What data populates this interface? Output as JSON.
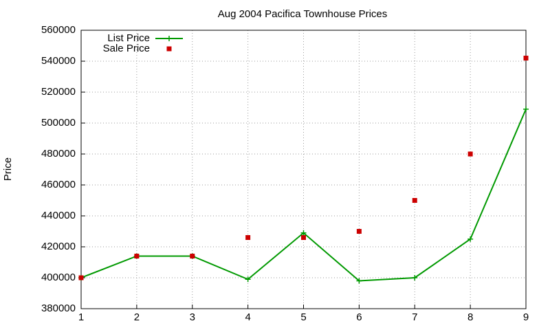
{
  "chart_data": {
    "type": "line",
    "title": "Aug 2004 Pacifica Townhouse Prices",
    "y_label": "Price",
    "x": [
      1,
      2,
      3,
      4,
      5,
      6,
      7,
      8,
      9
    ],
    "xlim": [
      1,
      9
    ],
    "xticks": [
      1,
      2,
      3,
      4,
      5,
      6,
      7,
      8,
      9
    ],
    "ylim": [
      380000,
      560000
    ],
    "yticks": [
      380000,
      400000,
      420000,
      440000,
      460000,
      480000,
      500000,
      520000,
      540000,
      560000
    ],
    "grid": true,
    "legend": "top-left",
    "series": [
      {
        "name": "List Price",
        "color": "#009900",
        "line": true,
        "marker": "plus",
        "values": [
          400000,
          414000,
          414000,
          399000,
          429000,
          398000,
          400000,
          425000,
          509000
        ]
      },
      {
        "name": "Sale Price",
        "color": "#cc0000",
        "line": false,
        "marker": "square",
        "values": [
          400000,
          414000,
          414000,
          426000,
          426000,
          430000,
          450000,
          480000,
          542000
        ]
      }
    ]
  }
}
